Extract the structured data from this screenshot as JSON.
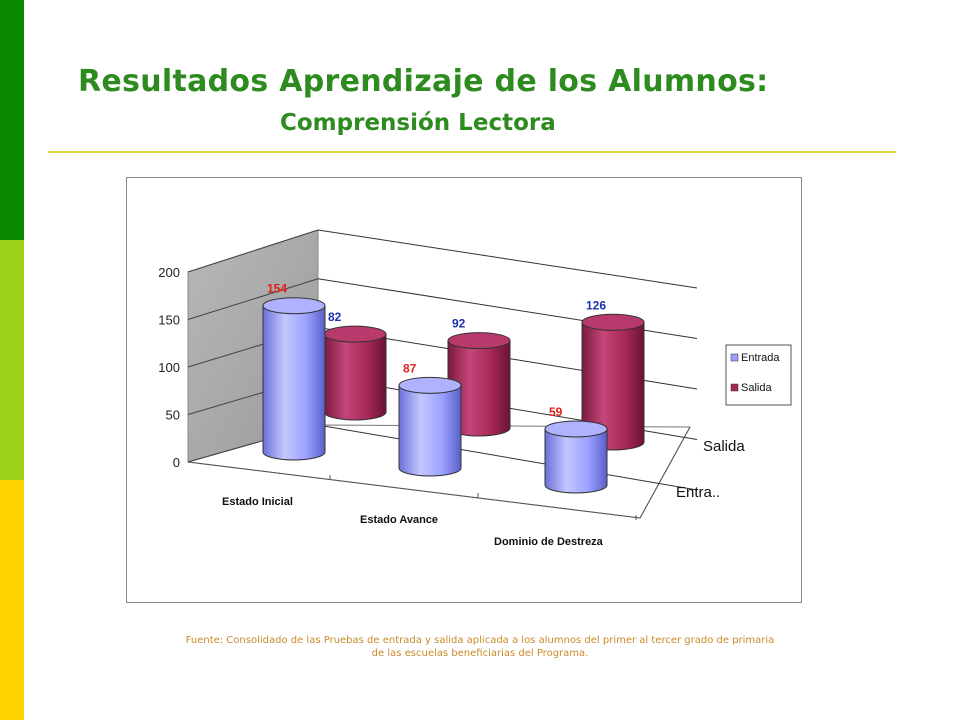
{
  "slide": {
    "title": "Resultados Aprendizaje de los Alumnos:",
    "subtitle": "Comprensión Lectora",
    "footnote_line1": "Fuente: Consolidado de las Pruebas de entrada y salida aplicada a los alumnos del primer al tercer grado de primaria",
    "footnote_line2": "de las escuelas beneficiarias del Programa.",
    "colors": {
      "title": "#2e8b1f",
      "rule": "#e3d24a",
      "side_bar": [
        "#0a8a00",
        "#9fd21a",
        "#ffd200"
      ],
      "footnote": "#c98a2a"
    }
  },
  "chart_data": {
    "type": "bar",
    "style": "3d-cylinder",
    "categories": [
      "Estado Inicial",
      "Estado Avance",
      "Dominio de Destreza"
    ],
    "series": [
      {
        "name": "Entrada",
        "values": [
          154,
          87,
          59
        ],
        "color": "#9aa0ff",
        "label_color": "#e0201a"
      },
      {
        "name": "Salida",
        "values": [
          82,
          92,
          126
        ],
        "color": "#a62857",
        "label_color": "#1a30b0"
      }
    ],
    "depth_labels": [
      "Salida",
      "Entra.."
    ],
    "ylim": [
      0,
      200
    ],
    "yticks": [
      "0",
      "50",
      "100",
      "150",
      "200"
    ],
    "grid": true,
    "legend_position": "right"
  }
}
